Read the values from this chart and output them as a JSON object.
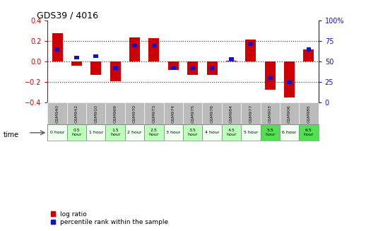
{
  "title": "GDS39 / 4016",
  "samples": [
    "GSM940",
    "GSM942",
    "GSM910",
    "GSM969",
    "GSM970",
    "GSM973",
    "GSM974",
    "GSM975",
    "GSM976",
    "GSM984",
    "GSM977",
    "GSM903",
    "GSM906",
    "GSM985"
  ],
  "time_labels": [
    "0 hour",
    "0.5\nhour",
    "1 hour",
    "1.5\nhour",
    "2 hour",
    "2.5\nhour",
    "3 hour",
    "3.5\nhour",
    "4 hour",
    "4.5\nhour",
    "5 hour",
    "5.5\nhour",
    "6 hour",
    "6.5\nhour"
  ],
  "log_ratio": [
    0.28,
    -0.04,
    -0.13,
    -0.19,
    0.24,
    0.23,
    -0.08,
    -0.13,
    -0.13,
    0.01,
    0.22,
    -0.27,
    -0.35,
    0.12
  ],
  "percentile": [
    65,
    55,
    57,
    42,
    70,
    70,
    42,
    42,
    42,
    53,
    72,
    30,
    25,
    65
  ],
  "ylim_left": [
    -0.4,
    0.4
  ],
  "ylim_right": [
    0,
    100
  ],
  "bar_color_red": "#cc0000",
  "bar_color_blue": "#1111cc",
  "zero_line_color": "#cc0000",
  "dotted_line_color": "#333333",
  "gsm_bg_color": "#bbbbbb",
  "gsm_text_color": "#111111",
  "time_bg_colors": [
    "#f0fff0",
    "#bbffbb",
    "#f0fff0",
    "#bbffbb",
    "#f0fff0",
    "#bbffbb",
    "#f0fff0",
    "#bbffbb",
    "#f0fff0",
    "#bbffbb",
    "#f0fff0",
    "#55dd55",
    "#f0fff0",
    "#55dd55"
  ],
  "legend_red_label": "log ratio",
  "legend_blue_label": "percentile rank within the sample"
}
